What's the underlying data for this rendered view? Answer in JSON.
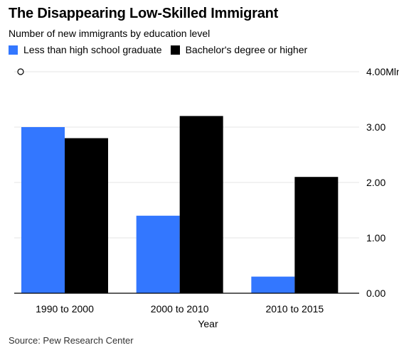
{
  "header": {
    "title": "The Disappearing Low-Skilled Immigrant",
    "subtitle": "Number of new immigrants by education level"
  },
  "source": "Source: Pew Research Center",
  "colors": {
    "series_1": "#3377ff",
    "series_2": "#000000",
    "grid": "#e6e6e6",
    "axis": "#000000"
  },
  "chart_data": {
    "type": "bar",
    "title": "The Disappearing Low-Skilled Immigrant",
    "subtitle": "Number of new immigrants by education level",
    "xlabel": "Year",
    "ylabel": "",
    "categories": [
      "1990 to 2000",
      "2000 to 2010",
      "2010 to 2015"
    ],
    "series": [
      {
        "name": "Less than high school graduate",
        "values": [
          3.0,
          1.4,
          0.3
        ]
      },
      {
        "name": "Bachelor's degree or higher",
        "values": [
          2.8,
          3.2,
          2.1
        ]
      }
    ],
    "ylim": [
      0,
      4.0
    ],
    "y_ticks": [
      {
        "value": 0,
        "label": "0.00"
      },
      {
        "value": 1,
        "label": "1.00"
      },
      {
        "value": 2,
        "label": "2.00"
      },
      {
        "value": 3,
        "label": "3.00"
      },
      {
        "value": 4,
        "label": "4.00Mln"
      }
    ],
    "y_axis_position": "right",
    "grid": true,
    "legend_position": "top-left"
  }
}
